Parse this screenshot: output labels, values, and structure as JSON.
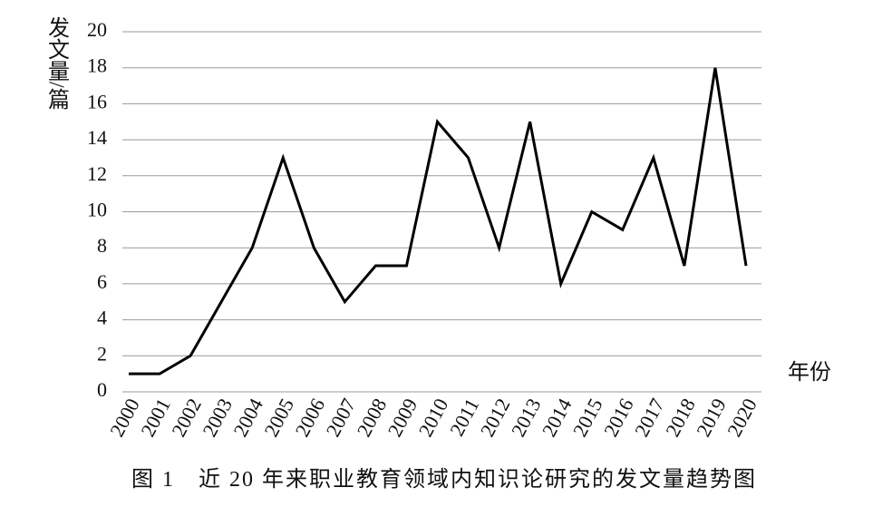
{
  "chart_data": {
    "type": "line",
    "title": "图 1　近 20 年来职业教育领域内知识论研究的发文量趋势图",
    "y_label": "发文量/篇",
    "x_label": "年份",
    "categories": [
      "2000",
      "2001",
      "2002",
      "2003",
      "2004",
      "2005",
      "2006",
      "2007",
      "2008",
      "2009",
      "2010",
      "2011",
      "2012",
      "2013",
      "2014",
      "2015",
      "2016",
      "2017",
      "2018",
      "2019",
      "2020"
    ],
    "values": [
      1,
      1,
      2,
      5,
      8,
      13,
      8,
      5,
      7,
      7,
      15,
      13,
      8,
      15,
      6,
      10,
      9,
      13,
      7,
      18,
      7
    ],
    "color": "#000000",
    "ylim": [
      0,
      20
    ],
    "yticks": [
      0,
      2,
      4,
      6,
      8,
      10,
      12,
      14,
      16,
      18,
      20
    ],
    "grid": true
  }
}
